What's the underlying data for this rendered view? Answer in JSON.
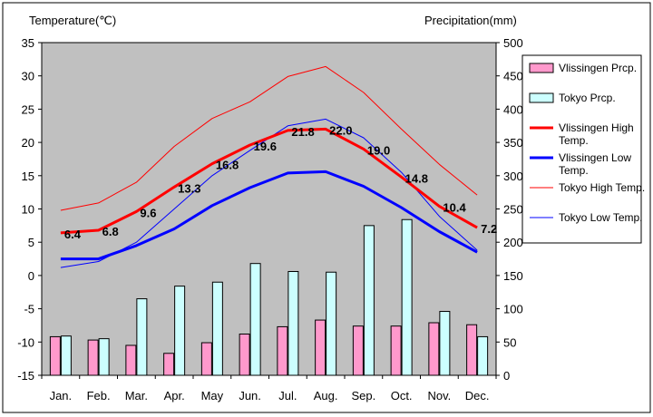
{
  "chart_data": {
    "type": "bar",
    "categories": [
      "Jan.",
      "Feb.",
      "Mar.",
      "Apr.",
      "May",
      "Jun.",
      "Jul.",
      "Aug.",
      "Sep.",
      "Oct.",
      "Nov.",
      "Dec."
    ],
    "y_left": {
      "label": "Temperature(℃)",
      "lim": [
        -15,
        35
      ],
      "ticks": [
        "35",
        "30",
        "25",
        "20",
        "15",
        "10",
        "5",
        "0",
        "-5",
        "-10",
        "-15"
      ]
    },
    "y_right": {
      "label": "Precipitation(mm)",
      "lim": [
        0,
        500
      ],
      "ticks": [
        "500",
        "450",
        "400",
        "350",
        "300",
        "250",
        "200",
        "150",
        "100",
        "50",
        "0"
      ]
    },
    "grid": false,
    "legend_position": "right",
    "series": [
      {
        "name": "Vlissingen Prcp.",
        "kind": "bar",
        "axis": "right",
        "color": "#ff99cc",
        "values": [
          58,
          53,
          45,
          33,
          49,
          62,
          73,
          83,
          74,
          74,
          79,
          76
        ]
      },
      {
        "name": "Tokyo Prcp.",
        "kind": "bar",
        "axis": "right",
        "color": "#ccffff",
        "values": [
          59,
          55,
          115,
          134,
          140,
          168,
          156,
          155,
          225,
          234,
          96,
          58
        ]
      },
      {
        "name": "Vlissingen High Temp.",
        "kind": "line",
        "axis": "left",
        "color": "#ff0000",
        "width": 3,
        "values": [
          6.4,
          6.8,
          9.6,
          13.3,
          16.8,
          19.6,
          21.8,
          22.0,
          19.0,
          14.8,
          10.4,
          7.2
        ],
        "labels": [
          "6.4",
          "6.8",
          "9.6",
          "13.3",
          "16.8",
          "19.6",
          "21.8",
          "22.0",
          "19.0",
          "14.8",
          "10.4",
          "7.2"
        ]
      },
      {
        "name": "Vlissingen Low Temp.",
        "kind": "line",
        "axis": "left",
        "color": "#0000ff",
        "width": 3,
        "values": [
          2.5,
          2.5,
          4.5,
          7.0,
          10.5,
          13.2,
          15.4,
          15.6,
          13.4,
          10.2,
          6.6,
          3.5
        ]
      },
      {
        "name": "Tokyo High Temp.",
        "kind": "line",
        "axis": "left",
        "color": "#ff0000",
        "width": 1,
        "values": [
          9.8,
          10.9,
          14.0,
          19.4,
          23.6,
          26.1,
          29.9,
          31.4,
          27.5,
          22.0,
          16.7,
          12.1
        ]
      },
      {
        "name": "Tokyo Low Temp.",
        "kind": "line",
        "axis": "left",
        "color": "#0000ff",
        "width": 1,
        "values": [
          1.2,
          2.1,
          5.0,
          10.0,
          15.0,
          18.8,
          22.5,
          23.5,
          20.7,
          15.5,
          8.9,
          3.8
        ]
      }
    ],
    "legend": [
      {
        "label": "Vlissingen Prcp.",
        "swatch": "bar",
        "color": "#ff99cc"
      },
      {
        "label": "Tokyo Prcp.",
        "swatch": "bar",
        "color": "#ccffff"
      },
      {
        "label": "Vlissingen High Temp.",
        "swatch": "line",
        "color": "#ff0000",
        "width": 3
      },
      {
        "label": "Vlissingen Low Temp.",
        "swatch": "line",
        "color": "#0000ff",
        "width": 3
      },
      {
        "label": "Tokyo High Temp.",
        "swatch": "line",
        "color": "#ff0000",
        "width": 1
      },
      {
        "label": "Tokyo Low Temp.",
        "swatch": "line",
        "color": "#0000ff",
        "width": 1
      }
    ],
    "plot_background": "#c0c0c0"
  }
}
